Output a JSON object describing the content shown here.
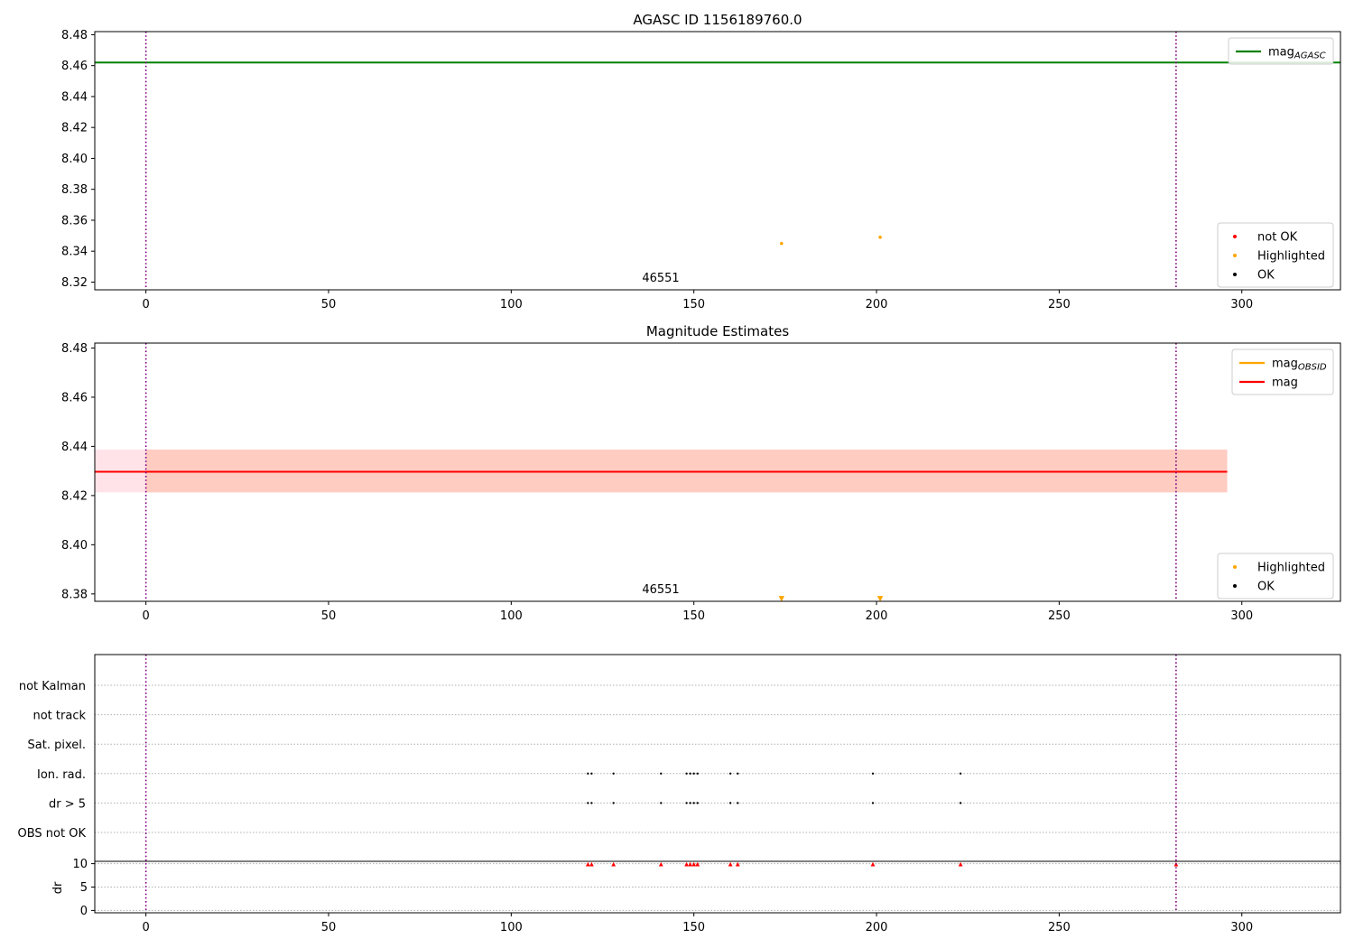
{
  "chart_data": [
    {
      "type": "scatter",
      "title": "AGASC ID 1156189760.0",
      "annotation": "46551",
      "xlim": [
        -14,
        327
      ],
      "ylim": [
        8.315,
        8.482
      ],
      "xticks": [
        0,
        50,
        100,
        150,
        200,
        250,
        300
      ],
      "yticks": [
        8.32,
        8.34,
        8.36,
        8.38,
        8.4,
        8.42,
        8.44,
        8.46,
        8.48
      ],
      "ytick_labels": [
        "8.32",
        "8.34",
        "8.36",
        "8.38",
        "8.40",
        "8.42",
        "8.44",
        "8.46",
        "8.48"
      ],
      "vlines": [
        0,
        282
      ],
      "hlines": [
        {
          "name": "mag_AGASC",
          "y": 8.462,
          "color": "#008000"
        }
      ],
      "legend_upper": [
        {
          "label": "mag",
          "sub": "AGASC",
          "color": "#008000",
          "kind": "line"
        }
      ],
      "legend_lower": [
        {
          "label": "not OK",
          "color": "#ff0000",
          "kind": "dot"
        },
        {
          "label": "Highlighted",
          "color": "#ffa500",
          "kind": "dot"
        },
        {
          "label": "OK",
          "color": "#000000",
          "kind": "dot"
        }
      ],
      "series": [
        {
          "name": "Highlighted",
          "color": "#ffa500",
          "x": [
            174,
            201
          ],
          "y": [
            8.345,
            8.349
          ]
        }
      ]
    },
    {
      "type": "scatter",
      "title": "Magnitude Estimates",
      "annotation": "46551",
      "xlim": [
        -14,
        327
      ],
      "ylim": [
        8.377,
        8.482
      ],
      "xticks": [
        0,
        50,
        100,
        150,
        200,
        250,
        300
      ],
      "yticks": [
        8.38,
        8.4,
        8.42,
        8.44,
        8.46,
        8.48
      ],
      "ytick_labels": [
        "8.38",
        "8.40",
        "8.42",
        "8.44",
        "8.46",
        "8.48"
      ],
      "vlines": [
        0,
        282
      ],
      "hlines": [
        {
          "name": "mag_OBSID",
          "y": 8.4297,
          "color": "#ffa500"
        },
        {
          "name": "mag",
          "y": 8.4297,
          "color": "#ff0000"
        }
      ],
      "bands": [
        {
          "name": "mag_band",
          "y0": 8.4213,
          "y1": 8.4387,
          "x0": -14,
          "x1": 296,
          "color": "#ffc0cb",
          "opacity": 0.45
        },
        {
          "name": "mag_obsid_band",
          "y0": 8.4213,
          "y1": 8.4387,
          "x0": 0,
          "x1": 296,
          "color": "#ffa07a",
          "opacity": 0.35
        }
      ],
      "legend_upper": [
        {
          "label": "mag",
          "sub": "OBSID",
          "color": "#ffa500",
          "kind": "line"
        },
        {
          "label": "mag",
          "sub": "",
          "color": "#ff0000",
          "kind": "line"
        }
      ],
      "legend_lower": [
        {
          "label": "Highlighted",
          "color": "#ffa500",
          "kind": "dot"
        },
        {
          "label": "OK",
          "color": "#000000",
          "kind": "dot"
        }
      ],
      "series": [
        {
          "name": "Highlighted (off-scale)",
          "color": "#ffa500",
          "marker": "triangle-down",
          "x": [
            174,
            201
          ],
          "y": [
            8.378,
            8.378
          ]
        }
      ]
    },
    {
      "type": "scatter",
      "title": "",
      "xlim": [
        -14,
        327
      ],
      "xticks": [
        0,
        50,
        100,
        150,
        200,
        250,
        300
      ],
      "vlines": [
        0,
        282
      ],
      "flag_categories": [
        "not Kalman",
        "not track",
        "Sat. pixel.",
        "Ion. rad.",
        "dr > 5",
        "OBS not OK"
      ],
      "flag_points": {
        "Ion. rad.": [
          121,
          122,
          128,
          141,
          148,
          149,
          150,
          151,
          160,
          162,
          199,
          223
        ],
        "dr > 5": [
          121,
          122,
          128,
          141,
          148,
          149,
          150,
          151,
          160,
          162,
          199,
          223
        ]
      },
      "dr_panel": {
        "ylabel": "dr",
        "ylim": [
          -0.5,
          10.5
        ],
        "yticks": [
          0,
          5,
          10
        ],
        "ytick_labels": [
          "0",
          "5",
          "10"
        ],
        "clipped_marker": "triangle-up",
        "clipped_x": [
          121,
          122,
          128,
          141,
          148,
          149,
          150,
          151,
          160,
          162,
          199,
          223,
          282
        ],
        "clipped_color": "#ff0000"
      }
    }
  ]
}
